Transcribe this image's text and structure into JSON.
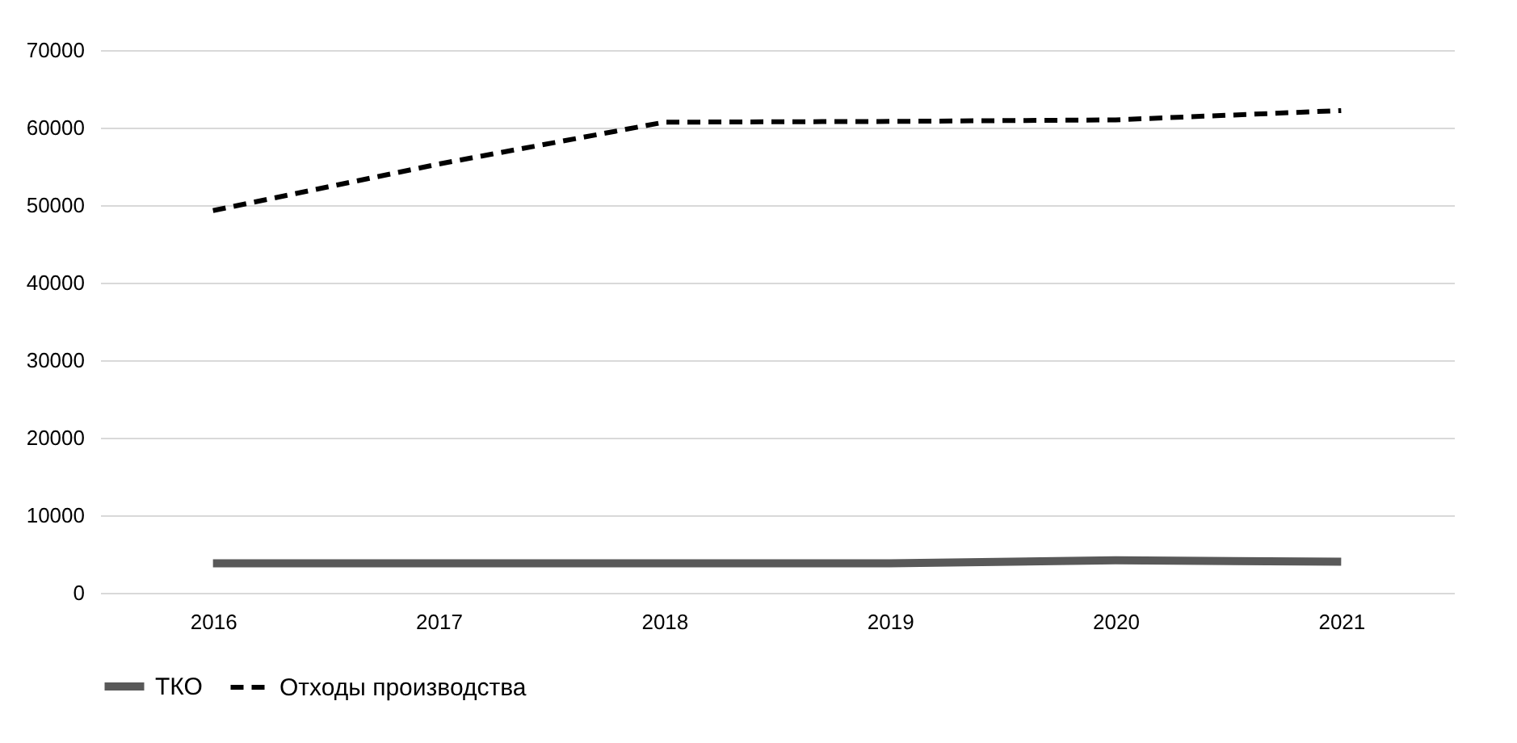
{
  "chart_data": {
    "type": "line",
    "categories": [
      "2016",
      "2017",
      "2018",
      "2019",
      "2020",
      "2021"
    ],
    "series": [
      {
        "name": "ТКО",
        "color": "#595959",
        "values": [
          3800,
          3800,
          3800,
          3800,
          4200,
          4000
        ],
        "line_style": "solid"
      },
      {
        "name": "Отходы производства",
        "color": "#000000",
        "values": [
          49300,
          55300,
          60700,
          60800,
          61000,
          62200
        ],
        "line_style": "dashed"
      }
    ],
    "ylim": [
      0,
      70000
    ],
    "yticks": [
      0,
      10000,
      20000,
      30000,
      40000,
      50000,
      60000,
      70000
    ],
    "grid": "y",
    "legend": "bottom",
    "marker": "none"
  }
}
